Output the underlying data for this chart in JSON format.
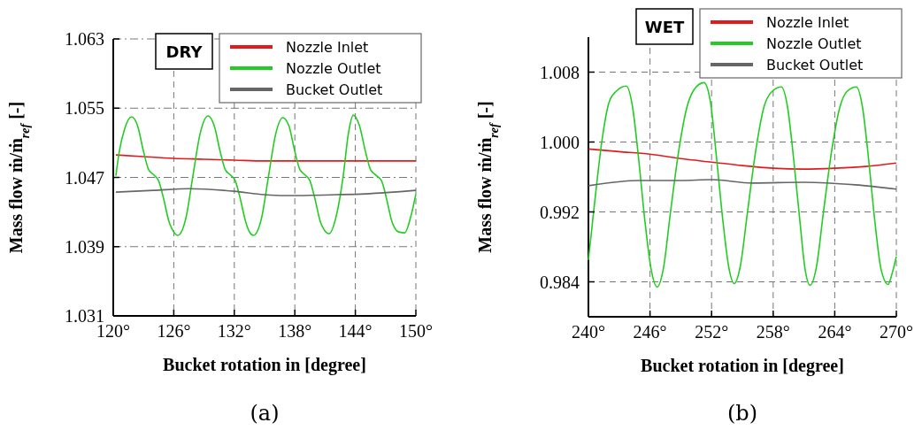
{
  "chart_data": [
    {
      "type": "line",
      "xlabel": "Bucket rotation in [degree]",
      "ylabel": "Mass flow ṁ/ṁ$_{ref}$ [-]",
      "annotations": [
        "DRY",
        "(a)"
      ],
      "xlim": [
        120,
        150
      ],
      "ylim": [
        1.031,
        1.063
      ],
      "xticks": [
        {
          "value": 120,
          "label": "120°"
        },
        {
          "value": 126,
          "label": "126°"
        },
        {
          "value": 132,
          "label": "132°"
        },
        {
          "value": 138,
          "label": "138°"
        },
        {
          "value": 144,
          "label": "144°"
        },
        {
          "value": 150,
          "label": "150°"
        }
      ],
      "yticks": [
        1.031,
        1.039,
        1.047,
        1.055,
        1.063
      ],
      "grid": true,
      "legend": "top right",
      "line_style": "solid",
      "marker": "none",
      "series": [
        {
          "name": "Nozzle Inlet",
          "color": "#e31a1c",
          "x": [
            120.26,
            123,
            126,
            129,
            132,
            135,
            138,
            141,
            144,
            147,
            150
          ],
          "values": [
            1.0496,
            1.0494,
            1.0492,
            1.0491,
            1.049,
            1.0489,
            1.0489,
            1.0489,
            1.0489,
            1.0489,
            1.0489
          ]
        },
        {
          "name": "Nozzle Outlet",
          "color": "#22cc22",
          "x": [
            120.26,
            120.6,
            121.1,
            121.8,
            122.4,
            123.0,
            123.5,
            124.0,
            124.5,
            125.0,
            125.5,
            126.0,
            126.4,
            127.2,
            127.9,
            128.6,
            129.4,
            130.0,
            130.6,
            131.1,
            131.6,
            132.1,
            132.6,
            133.1,
            133.5,
            133.9,
            134.7,
            135.4,
            136.1,
            136.8,
            137.4,
            138.0,
            138.5,
            139.0,
            139.5,
            140.0,
            140.5,
            141.0,
            141.4,
            142.1,
            142.8,
            143.3,
            143.8,
            144.4,
            145.0,
            145.5,
            146.0,
            146.6,
            147.1,
            147.6,
            148.3,
            148.9,
            149.5,
            150.0
          ],
          "values": [
            1.0472,
            1.05,
            1.0525,
            1.054,
            1.053,
            1.05,
            1.0479,
            1.0473,
            1.0466,
            1.0445,
            1.042,
            1.0407,
            1.0403,
            1.0423,
            1.0472,
            1.052,
            1.0541,
            1.053,
            1.05,
            1.0479,
            1.0473,
            1.0466,
            1.0445,
            1.042,
            1.0407,
            1.0403,
            1.0423,
            1.0472,
            1.052,
            1.0539,
            1.053,
            1.05,
            1.0479,
            1.0473,
            1.0466,
            1.0445,
            1.042,
            1.0408,
            1.0405,
            1.0425,
            1.0472,
            1.052,
            1.0542,
            1.053,
            1.05,
            1.0479,
            1.0473,
            1.0466,
            1.0445,
            1.042,
            1.0407,
            1.0406,
            1.0425,
            1.0451
          ]
        },
        {
          "name": "Bucket Outlet",
          "color": "#666666",
          "x": [
            120.26,
            124,
            127.5,
            132,
            135,
            137,
            142,
            145,
            150
          ],
          "values": [
            1.0453,
            1.0455,
            1.0457,
            1.0454,
            1.045,
            1.0449,
            1.045,
            1.0451,
            1.0455
          ]
        }
      ]
    },
    {
      "type": "line",
      "xlabel": "Bucket rotation in [degree]",
      "ylabel": "Mass flow ṁ/ṁ$_{ref}$ [-]",
      "annotations": [
        "WET",
        "(b)"
      ],
      "xlim": [
        240,
        270
      ],
      "ylim": [
        0.98,
        1.012
      ],
      "xticks": [
        {
          "value": 240,
          "label": "240°"
        },
        {
          "value": 246,
          "label": "246°"
        },
        {
          "value": 252,
          "label": "252°"
        },
        {
          "value": 258,
          "label": "258°"
        },
        {
          "value": 264,
          "label": "264°"
        },
        {
          "value": 270,
          "label": "270°"
        }
      ],
      "yticks": [
        {
          "value": 0.984,
          "label": "0.984"
        },
        {
          "value": 0.992,
          "label": "0.992"
        },
        {
          "value": 1.0,
          "label": "1.000"
        },
        {
          "value": 1.008,
          "label": "1.008"
        }
      ],
      "grid": true,
      "legend": "top right",
      "line_style": "solid",
      "marker": "none",
      "series": [
        {
          "name": "Nozzle Inlet",
          "color": "#e31a1c",
          "x": [
            240,
            243,
            246,
            249,
            252,
            255,
            258,
            261,
            264,
            267,
            270
          ],
          "values": [
            0.9992,
            0.9989,
            0.9986,
            0.9981,
            0.9977,
            0.9973,
            0.997,
            0.9969,
            0.997,
            0.9972,
            0.9976
          ]
        },
        {
          "name": "Nozzle Outlet",
          "color": "#22cc22",
          "x": [
            240,
            240.6,
            241.3,
            242.0,
            242.7,
            243.7,
            244.3,
            244.9,
            245.5,
            246.1,
            246.7,
            247.3,
            248.0,
            248.8,
            249.6,
            250.3,
            251.25,
            251.9,
            252.5,
            253.1,
            253.7,
            254.2,
            254.8,
            255.5,
            256.3,
            257.1,
            257.9,
            258.8,
            259.4,
            260.0,
            260.6,
            261.1,
            261.6,
            262.2,
            262.9,
            263.7,
            264.5,
            265.2,
            266.1,
            266.7,
            267.3,
            267.9,
            268.5,
            269.2,
            269.6,
            270
          ],
          "values": [
            0.9865,
            0.993,
            1.0,
            1.0045,
            1.0058,
            1.0064,
            1.004,
            0.998,
            0.991,
            0.9855,
            0.9834,
            0.9855,
            0.992,
            0.999,
            1.004,
            1.006,
            1.0068,
            1.0045,
            0.998,
            0.991,
            0.9855,
            0.9838,
            0.9858,
            0.992,
            0.999,
            1.004,
            1.0058,
            1.0063,
            1.004,
            0.998,
            0.991,
            0.9855,
            0.9836,
            0.9856,
            0.992,
            0.999,
            1.004,
            1.0058,
            1.0063,
            1.004,
            0.998,
            0.991,
            0.9855,
            0.9837,
            0.985,
            0.9869
          ]
        },
        {
          "name": "Bucket Outlet",
          "color": "#666666",
          "x": [
            240,
            245,
            249,
            252,
            256,
            261,
            266,
            270
          ],
          "values": [
            0.995,
            0.9956,
            0.9956,
            0.9957,
            0.9953,
            0.9954,
            0.9951,
            0.9946
          ]
        }
      ]
    }
  ]
}
